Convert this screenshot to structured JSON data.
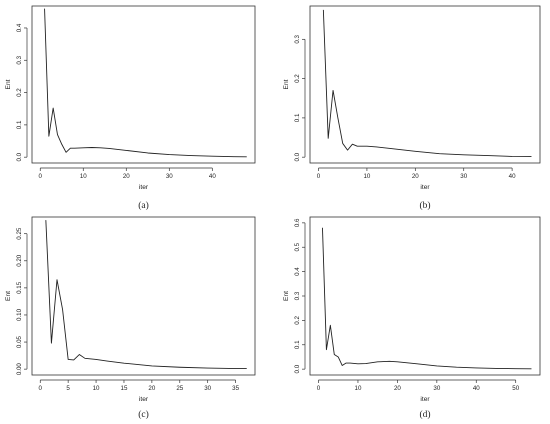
{
  "figure": {
    "panels": [
      {
        "id": "a",
        "caption": "(a)"
      },
      {
        "id": "b",
        "caption": "(b)"
      },
      {
        "id": "c",
        "caption": "(c)"
      },
      {
        "id": "d",
        "caption": "(d)"
      }
    ]
  },
  "chart_data": [
    {
      "type": "line",
      "panel": "(a)",
      "xlabel": "iter",
      "ylabel": "Ent",
      "xlim": [
        0,
        48
      ],
      "ylim": [
        0,
        0.45
      ],
      "xticks": [
        0,
        10,
        20,
        30,
        40
      ],
      "yticks": [
        0.0,
        0.1,
        0.2,
        0.3,
        0.4
      ],
      "ytick_labels": [
        "0.0",
        "0.1",
        "0.2",
        "0.3",
        "0.4"
      ],
      "x": [
        1,
        2,
        3,
        4,
        5,
        6,
        7,
        8,
        10,
        12,
        14,
        16,
        20,
        25,
        30,
        35,
        40,
        45,
        48
      ],
      "y": [
        0.46,
        0.065,
        0.152,
        0.07,
        0.04,
        0.015,
        0.028,
        0.028,
        0.029,
        0.03,
        0.029,
        0.027,
        0.021,
        0.013,
        0.008,
        0.005,
        0.003,
        0.0015,
        0.001
      ]
    },
    {
      "type": "line",
      "panel": "(b)",
      "xlabel": "iter",
      "ylabel": "Ent",
      "xlim": [
        0,
        44
      ],
      "ylim": [
        0,
        0.37
      ],
      "xticks": [
        0,
        10,
        20,
        30,
        40
      ],
      "yticks": [
        0.0,
        0.1,
        0.2,
        0.3
      ],
      "ytick_labels": [
        "0.0",
        "0.1",
        "0.2",
        "0.3"
      ],
      "x": [
        1,
        2,
        3,
        4,
        5,
        6,
        7,
        8,
        10,
        12,
        15,
        20,
        25,
        30,
        35,
        40,
        44
      ],
      "y": [
        0.375,
        0.048,
        0.17,
        0.1,
        0.035,
        0.018,
        0.033,
        0.028,
        0.028,
        0.026,
        0.022,
        0.015,
        0.009,
        0.006,
        0.004,
        0.002,
        0.0015
      ]
    },
    {
      "type": "line",
      "panel": "(c)",
      "xlabel": "iter",
      "ylabel": "Ent",
      "xlim": [
        0,
        37
      ],
      "ylim": [
        0,
        0.27
      ],
      "xticks": [
        0,
        5,
        10,
        15,
        20,
        25,
        30,
        35
      ],
      "yticks": [
        0.0,
        0.05,
        0.1,
        0.15,
        0.2,
        0.25
      ],
      "ytick_labels": [
        "0.00",
        "0.05",
        "0.10",
        "0.15",
        "0.20",
        "0.25"
      ],
      "x": [
        1,
        2,
        3,
        4,
        5,
        6,
        7,
        8,
        10,
        12,
        15,
        20,
        25,
        30,
        35,
        37
      ],
      "y": [
        0.275,
        0.048,
        0.165,
        0.11,
        0.018,
        0.017,
        0.027,
        0.02,
        0.018,
        0.015,
        0.011,
        0.006,
        0.0035,
        0.002,
        0.001,
        0.001
      ]
    },
    {
      "type": "line",
      "panel": "(d)",
      "xlabel": "iter",
      "ylabel": "Ent",
      "xlim": [
        0,
        54
      ],
      "ylim": [
        0,
        0.6
      ],
      "xticks": [
        0,
        10,
        20,
        30,
        40,
        50
      ],
      "yticks": [
        0.0,
        0.1,
        0.2,
        0.3,
        0.4,
        0.5,
        0.6
      ],
      "ytick_labels": [
        "0.0",
        "0.1",
        "0.2",
        "0.3",
        "0.4",
        "0.5",
        "0.6"
      ],
      "x": [
        1,
        2,
        3,
        4,
        5,
        6,
        7,
        8,
        10,
        12,
        15,
        18,
        20,
        25,
        30,
        35,
        40,
        45,
        50,
        54
      ],
      "y": [
        0.58,
        0.08,
        0.18,
        0.06,
        0.05,
        0.015,
        0.025,
        0.025,
        0.022,
        0.023,
        0.03,
        0.032,
        0.03,
        0.022,
        0.013,
        0.008,
        0.005,
        0.003,
        0.002,
        0.0015
      ]
    }
  ]
}
